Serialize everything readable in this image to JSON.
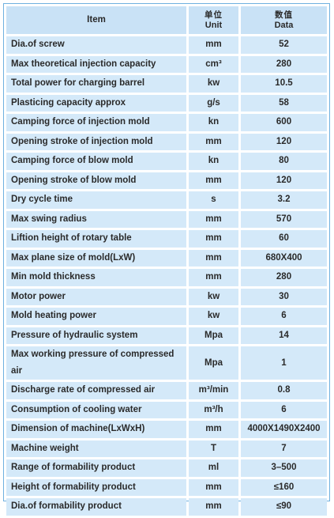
{
  "header": {
    "item": "Item",
    "unit_zh": "单位",
    "unit_en": "Unit",
    "data_zh": "数值",
    "data_en": "Data"
  },
  "rows": [
    {
      "item": "Dia.of screw",
      "unit": "mm",
      "value": "52"
    },
    {
      "item": "Max theoretical injection capacity",
      "unit": "cm³",
      "value": "280"
    },
    {
      "item": "Total power for charging barrel",
      "unit": "kw",
      "value": "10.5"
    },
    {
      "item": "Plasticing capacity approx",
      "unit": "g/s",
      "value": "58"
    },
    {
      "item": "Camping force of injection mold",
      "unit": "kn",
      "value": "600"
    },
    {
      "item": "Opening stroke of injection mold",
      "unit": "mm",
      "value": "120"
    },
    {
      "item": "Camping force of blow mold",
      "unit": "kn",
      "value": "80"
    },
    {
      "item": "Opening stroke of blow mold",
      "unit": "mm",
      "value": "120"
    },
    {
      "item": "Dry cycle time",
      "unit": "s",
      "value": "3.2"
    },
    {
      "item": "Max swing radius",
      "unit": "mm",
      "value": "570"
    },
    {
      "item": "Liftion height of rotary table",
      "unit": "mm",
      "value": "60"
    },
    {
      "item": "Max plane size of mold(LxW)",
      "unit": "mm",
      "value": "680X400"
    },
    {
      "item": "Min mold thickness",
      "unit": "mm",
      "value": "280"
    },
    {
      "item": "Motor power",
      "unit": "kw",
      "value": "30"
    },
    {
      "item": "Mold heating power",
      "unit": "kw",
      "value": "6"
    },
    {
      "item": "Pressure of hydraulic system",
      "unit": "Mpa",
      "value": "14"
    },
    {
      "item": "Max working pressure of compressed air",
      "unit": "Mpa",
      "value": "1"
    },
    {
      "item": "Discharge rate of compressed air",
      "unit": "m³/min",
      "value": "0.8"
    },
    {
      "item": "Consumption of cooling water",
      "unit": "m³/h",
      "value": "6"
    },
    {
      "item": "Dimension of machine(LxWxH)",
      "unit": "mm",
      "value": "4000X1490X2400"
    },
    {
      "item": "Machine weight",
      "unit": "T",
      "value": "7"
    },
    {
      "item": "Range of formability product",
      "unit": "ml",
      "value": "3–500"
    },
    {
      "item": "Height of formability product",
      "unit": "mm",
      "value": "≤160"
    },
    {
      "item": "Dia.of formability product",
      "unit": "mm",
      "value": "≤90"
    }
  ]
}
